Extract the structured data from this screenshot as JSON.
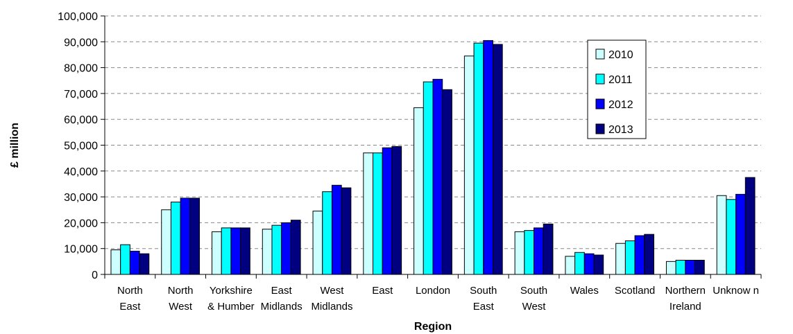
{
  "chart_data": {
    "type": "bar",
    "title": "",
    "xlabel": "Region",
    "ylabel": "£ million",
    "ylim": [
      0,
      100000
    ],
    "yticks": [
      0,
      10000,
      20000,
      30000,
      40000,
      50000,
      60000,
      70000,
      80000,
      90000,
      100000
    ],
    "ytick_labels": [
      "0",
      "10,000",
      "20,000",
      "30,000",
      "40,000",
      "50,000",
      "60,000",
      "70,000",
      "80,000",
      "90,000",
      "100,000"
    ],
    "grid": "horizontal dashed",
    "legend_position": "top-right",
    "categories": [
      [
        "North",
        "East"
      ],
      [
        "North",
        "West"
      ],
      [
        "Yorkshire",
        "& Humber"
      ],
      [
        "East",
        "Midlands"
      ],
      [
        "West",
        "Midlands"
      ],
      [
        "East"
      ],
      [
        "London"
      ],
      [
        "South",
        "East"
      ],
      [
        "South",
        "West"
      ],
      [
        "Wales"
      ],
      [
        "Scotland"
      ],
      [
        "Northern",
        "Ireland"
      ],
      [
        "Unknow n"
      ]
    ],
    "series": [
      {
        "name": "2010",
        "color": "#ccffff",
        "values": [
          9500,
          25000,
          16500,
          17500,
          24500,
          47000,
          64500,
          84500,
          16500,
          7000,
          12000,
          5000,
          30500
        ]
      },
      {
        "name": "2011",
        "color": "#00ffff",
        "values": [
          11500,
          28000,
          18000,
          19000,
          32000,
          47000,
          74500,
          89500,
          17000,
          8500,
          13000,
          5500,
          29000
        ]
      },
      {
        "name": "2012",
        "color": "#0000ff",
        "values": [
          9000,
          29500,
          18000,
          20000,
          34500,
          49000,
          75500,
          90500,
          18000,
          8000,
          15000,
          5500,
          31000
        ]
      },
      {
        "name": "2013",
        "color": "#000080",
        "values": [
          8000,
          29500,
          18000,
          21000,
          33500,
          49500,
          71500,
          89000,
          19500,
          7500,
          15500,
          5500,
          37500
        ]
      }
    ]
  }
}
